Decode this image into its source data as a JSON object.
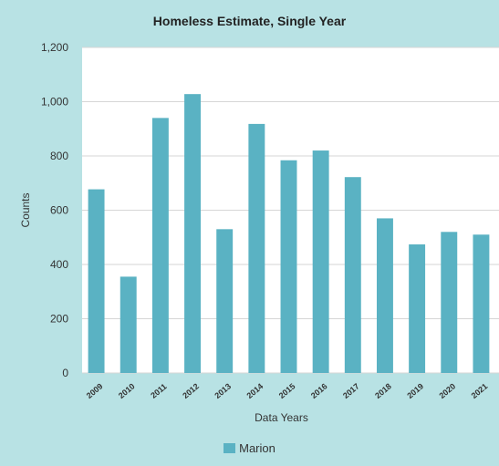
{
  "chart_data": {
    "type": "bar",
    "title": "Homeless Estimate, Single Year",
    "xlabel": "Data Years",
    "ylabel": "Counts",
    "categories": [
      "2009",
      "2010",
      "2011",
      "2012",
      "2013",
      "2014",
      "2015",
      "2016",
      "2017",
      "2018",
      "2019",
      "2020",
      "2021"
    ],
    "series": [
      {
        "name": "Marion",
        "color": "#5ab2c3",
        "values": [
          677,
          355,
          940,
          1028,
          530,
          918,
          784,
          820,
          722,
          570,
          474,
          520,
          510
        ]
      }
    ],
    "ylim": [
      0,
      1200
    ],
    "yticks": [
      0,
      200,
      400,
      600,
      800,
      1000,
      1200
    ],
    "ytick_labels": [
      "0",
      "200",
      "400",
      "600",
      "800",
      "1,000",
      "1,200"
    ],
    "grid": true,
    "legend_position": "bottom"
  }
}
